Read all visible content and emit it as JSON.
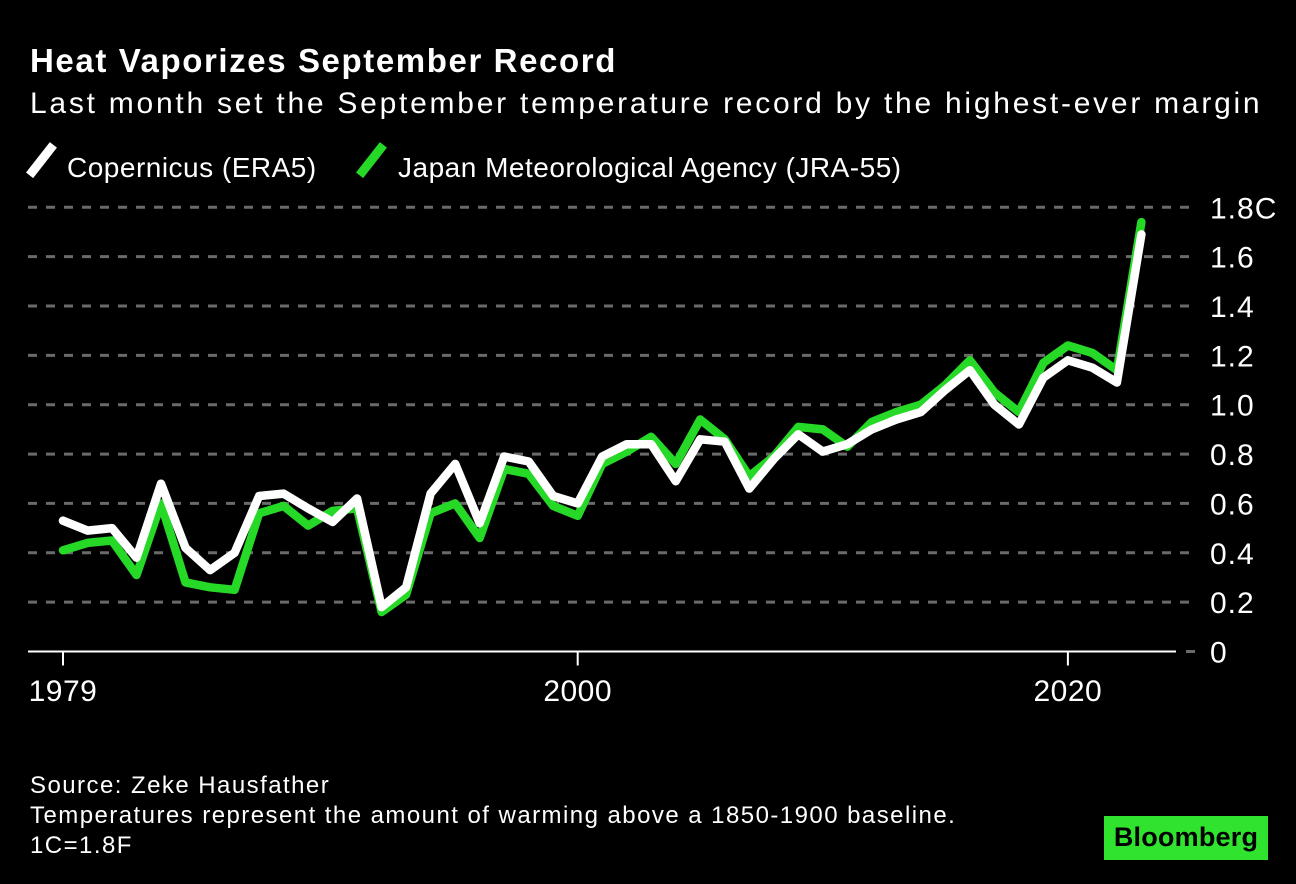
{
  "header": {
    "title": "Heat Vaporizes September Record",
    "subtitle": "Last month set the September temperature record by the highest-ever margin"
  },
  "legend": [
    {
      "label": "Copernicus (ERA5)",
      "color": "#ffffff"
    },
    {
      "label": "Japan Meteorological Agency (JRA-55)",
      "color": "#26d926"
    }
  ],
  "footer": {
    "source": "Source: Zeke Hausfather",
    "note": "Temperatures represent the amount of warming above a 1850-1900 baseline.",
    "note2": "1C=1.8F",
    "brand": "Bloomberg"
  },
  "colors": {
    "background": "#000000",
    "white_series": "#ffffff",
    "green_series": "#26d926",
    "gridline": "#6a6a6a",
    "axis": "#ffffff",
    "tick_label": "#ffffff",
    "logo_bg": "#2fe32f",
    "logo_text": "#000000"
  },
  "chart_data": {
    "type": "line",
    "title": "Heat Vaporizes September Record",
    "subtitle": "Last month set the September temperature record by the highest-ever margin",
    "x": [
      1979,
      1980,
      1981,
      1982,
      1983,
      1984,
      1985,
      1986,
      1987,
      1988,
      1989,
      1990,
      1991,
      1992,
      1993,
      1994,
      1995,
      1996,
      1997,
      1998,
      1999,
      2000,
      2001,
      2002,
      2003,
      2004,
      2005,
      2006,
      2007,
      2008,
      2009,
      2010,
      2011,
      2012,
      2013,
      2014,
      2015,
      2016,
      2017,
      2018,
      2019,
      2020,
      2021,
      2022,
      2023
    ],
    "series": [
      {
        "name": "Japan Meteorological Agency (JRA-55)",
        "color": "#26d926",
        "values": [
          0.41,
          0.44,
          0.45,
          0.31,
          0.6,
          0.28,
          0.26,
          0.25,
          0.56,
          0.59,
          0.51,
          0.57,
          0.58,
          0.16,
          0.23,
          0.56,
          0.6,
          0.46,
          0.74,
          0.72,
          0.59,
          0.55,
          0.76,
          0.81,
          0.87,
          0.76,
          0.94,
          0.86,
          0.71,
          0.79,
          0.91,
          0.9,
          0.83,
          0.93,
          0.97,
          1.0,
          1.08,
          1.18,
          1.05,
          0.97,
          1.17,
          1.24,
          1.21,
          1.14,
          1.74
        ]
      },
      {
        "name": "Copernicus (ERA5)",
        "color": "#ffffff",
        "values": [
          0.53,
          0.49,
          0.5,
          0.38,
          0.68,
          0.42,
          0.33,
          0.4,
          0.63,
          0.64,
          0.58,
          0.525,
          0.62,
          0.18,
          0.26,
          0.64,
          0.76,
          0.52,
          0.79,
          0.77,
          0.63,
          0.6,
          0.79,
          0.84,
          0.84,
          0.69,
          0.86,
          0.85,
          0.66,
          0.78,
          0.88,
          0.81,
          0.84,
          0.9,
          0.94,
          0.97,
          1.06,
          1.14,
          1.0,
          0.92,
          1.11,
          1.18,
          1.15,
          1.09,
          1.69
        ]
      }
    ],
    "xlabel": "",
    "ylabel": "",
    "ylim": [
      0,
      1.8
    ],
    "y_ticks": [
      {
        "value": 0,
        "label": "0"
      },
      {
        "value": 0.2,
        "label": "0.2"
      },
      {
        "value": 0.4,
        "label": "0.4"
      },
      {
        "value": 0.6,
        "label": "0.6"
      },
      {
        "value": 0.8,
        "label": "0.8"
      },
      {
        "value": 1.0,
        "label": "1.0"
      },
      {
        "value": 1.2,
        "label": "1.2"
      },
      {
        "value": 1.4,
        "label": "1.4"
      },
      {
        "value": 1.6,
        "label": "1.6"
      },
      {
        "value": 1.8,
        "label": "1.8C"
      }
    ],
    "x_ticks": [
      {
        "value": 1979,
        "label": "1979"
      },
      {
        "value": 2000,
        "label": "2000"
      },
      {
        "value": 2020,
        "label": "2020"
      }
    ],
    "grid": "dashed-horizontal",
    "legend_position": "top-left"
  }
}
